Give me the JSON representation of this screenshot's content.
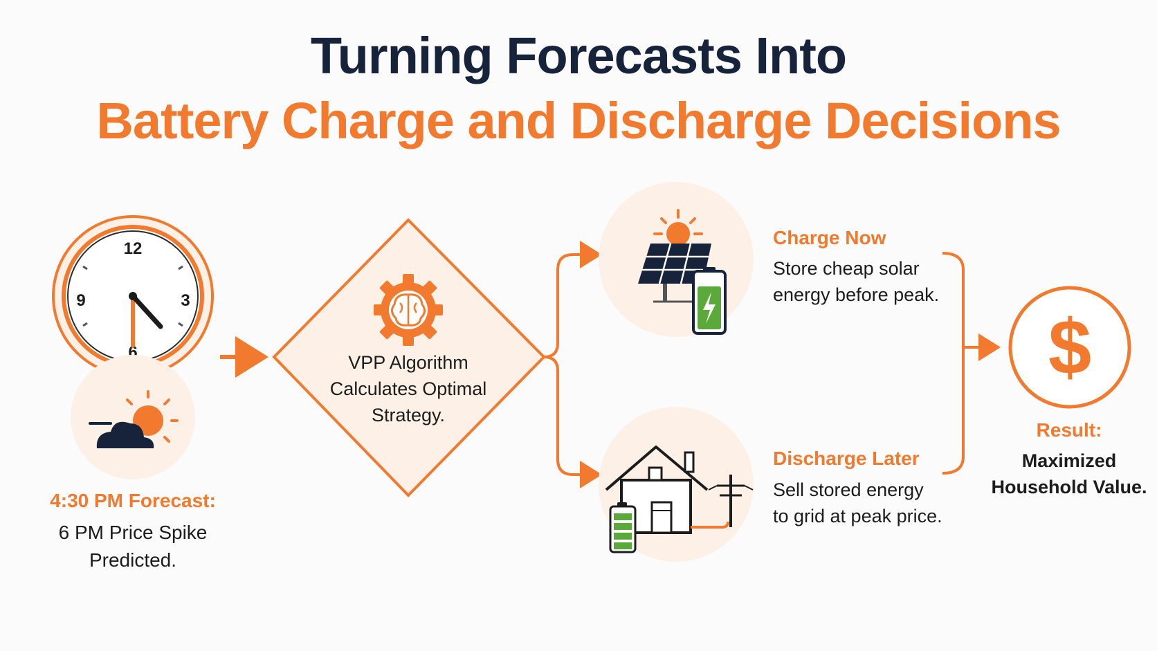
{
  "title": {
    "line1": "Turning Forecasts Into",
    "line2": "Battery Charge and Discharge Decisions"
  },
  "colors": {
    "accent": "#f27a2e",
    "navy": "#17233a",
    "pale": "#fdf0e6",
    "battery_green": "#5ba93a"
  },
  "clock": {
    "numbers": [
      "12",
      "3",
      "6",
      "9"
    ],
    "time_shown": "4:30"
  },
  "forecast": {
    "heading": "4:30 PM Forecast:",
    "body_line1": "6 PM Price Spike",
    "body_line2": "Predicted."
  },
  "algorithm": {
    "line1": "VPP Algorithm",
    "line2": "Calculates Optimal",
    "line3": "Strategy."
  },
  "charge": {
    "heading": "Charge Now",
    "line1": "Store cheap solar",
    "line2": "energy before peak."
  },
  "discharge": {
    "heading": "Discharge Later",
    "line1": "Sell stored energy",
    "line2": "to grid at peak price."
  },
  "result": {
    "symbol": "$",
    "heading": "Result:",
    "line1": "Maximized",
    "line2": "Household Value."
  },
  "icons": [
    "clock-icon",
    "cloud-sun-icon",
    "brain-gear-icon",
    "solar-panel-icon",
    "battery-icon",
    "house-icon",
    "power-pole-icon",
    "dollar-icon"
  ]
}
